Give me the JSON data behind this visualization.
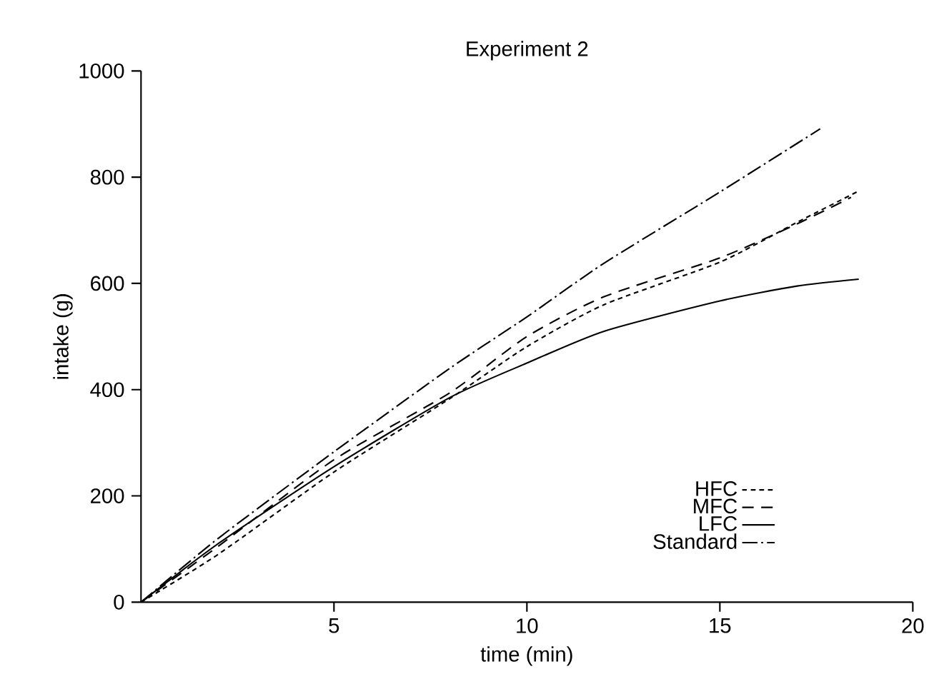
{
  "chart_data": {
    "type": "line",
    "title": "Experiment 2",
    "xlabel": "time (min)",
    "ylabel": "intake (g)",
    "xlim": [
      0,
      20
    ],
    "ylim": [
      0,
      1000
    ],
    "xticks": [
      5,
      10,
      15,
      20
    ],
    "yticks": [
      0,
      200,
      400,
      600,
      800,
      1000
    ],
    "legend": "bottom right",
    "grid": false,
    "series": [
      {
        "name": "HFC",
        "color": "#000000",
        "line_style": "dotted",
        "x": [
          0,
          2,
          5,
          8,
          10,
          12,
          15,
          17,
          18.6
        ],
        "values": [
          0,
          90,
          245,
          383,
          481,
          560,
          640,
          715,
          774
        ]
      },
      {
        "name": "MFC",
        "color": "#000000",
        "line_style": "dashed",
        "x": [
          0,
          2,
          5,
          8,
          10,
          12,
          15,
          17,
          18.4
        ],
        "values": [
          0,
          105,
          268,
          394,
          500,
          575,
          648,
          712,
          762
        ]
      },
      {
        "name": "LFC",
        "color": "#000000",
        "line_style": "solid",
        "x": [
          0,
          2,
          5,
          8,
          10,
          12,
          15,
          17,
          18.6
        ],
        "values": [
          0,
          110,
          255,
          385,
          450,
          510,
          567,
          595,
          608
        ]
      },
      {
        "name": "Standard",
        "color": "#000000",
        "line_style": "dashdot",
        "x": [
          0,
          2,
          5,
          8,
          10,
          12,
          15,
          17.6
        ],
        "values": [
          0,
          120,
          283,
          440,
          537,
          638,
          772,
          891
        ]
      }
    ]
  }
}
